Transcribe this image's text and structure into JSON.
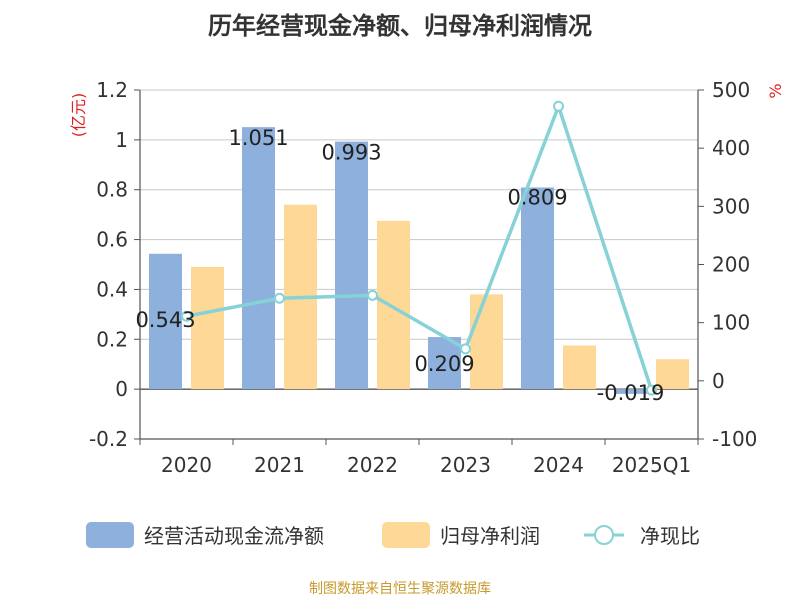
{
  "title": "历年经营现金净额、归母净利润情况",
  "source": "制图数据来自恒生聚源数据库",
  "chart_data": {
    "type": "bar",
    "title": "历年经营现金净额、归母净利润情况",
    "categories": [
      "2020",
      "2021",
      "2022",
      "2023",
      "2024",
      "2025Q1"
    ],
    "y_left": {
      "unit": "(亿元)",
      "ylim": [
        -0.2,
        1.2
      ],
      "ticks": [
        -0.2,
        0,
        0.2,
        0.4,
        0.6,
        0.8,
        1,
        1.2
      ],
      "tick_labels": [
        "-0.2",
        "0",
        "0.2",
        "0.4",
        "0.6",
        "0.8",
        "1",
        "1.2"
      ]
    },
    "y_right": {
      "unit": "%",
      "ylim": [
        -100,
        500
      ],
      "ticks": [
        -100,
        0,
        100,
        200,
        300,
        400,
        500
      ],
      "tick_labels": [
        "-100",
        "0",
        "100",
        "200",
        "300",
        "400",
        "500"
      ]
    },
    "series": [
      {
        "name": "经营活动现金流净额",
        "type": "bar",
        "axis": "left",
        "color": "#8eb0dc",
        "values": [
          0.543,
          1.051,
          0.993,
          0.209,
          0.809,
          -0.019
        ],
        "labels": [
          "0.543",
          "1.051",
          "0.993",
          "0.209",
          "0.809",
          "-0.019"
        ]
      },
      {
        "name": "归母净利润",
        "type": "bar",
        "axis": "left",
        "color": "#fdd896",
        "values": [
          0.49,
          0.74,
          0.675,
          0.38,
          0.175,
          0.12
        ]
      },
      {
        "name": "净现比",
        "type": "line",
        "axis": "right",
        "color": "#86d2d6",
        "values": [
          111,
          142,
          147,
          55,
          472,
          -16
        ]
      }
    ],
    "legend": [
      "经营活动现金流净额",
      "归母净利润",
      "净现比"
    ],
    "legend_position": "bottom",
    "grid": true
  }
}
